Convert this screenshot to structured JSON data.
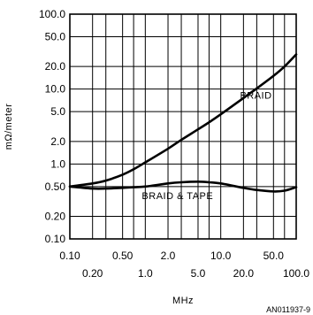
{
  "chart_data": {
    "type": "line",
    "xlabel": "MHz",
    "ylabel": "mΩ/meter",
    "x_scale": "log",
    "y_scale": "log",
    "xlim": [
      0.1,
      100
    ],
    "ylim": [
      0.1,
      100
    ],
    "grid": true,
    "y_ticks": [
      {
        "value": 100,
        "label": "100.0"
      },
      {
        "value": 50,
        "label": "50.0"
      },
      {
        "value": 20,
        "label": "20.0"
      },
      {
        "value": 10,
        "label": "10.0"
      },
      {
        "value": 5,
        "label": "5.0"
      },
      {
        "value": 2,
        "label": "2.0"
      },
      {
        "value": 1,
        "label": "1.0"
      },
      {
        "value": 0.5,
        "label": "0.50"
      },
      {
        "value": 0.2,
        "label": "0.20"
      },
      {
        "value": 0.1,
        "label": "0.10"
      }
    ],
    "x_ticks_top_row": [
      {
        "value": 0.1,
        "label": "0.10"
      },
      {
        "value": 0.5,
        "label": "0.50"
      },
      {
        "value": 2,
        "label": "2.0"
      },
      {
        "value": 10,
        "label": "10.0"
      },
      {
        "value": 50,
        "label": "50.0"
      }
    ],
    "x_ticks_bottom_row": [
      {
        "value": 0.2,
        "label": "0.20"
      },
      {
        "value": 1,
        "label": "1.0"
      },
      {
        "value": 5,
        "label": "5.0"
      },
      {
        "value": 20,
        "label": "20.0"
      },
      {
        "value": 100,
        "label": "100.0"
      }
    ],
    "x_gridlines": [
      0.2,
      0.3,
      0.5,
      0.7,
      1,
      2,
      3,
      5,
      7,
      10,
      20,
      30,
      50,
      70
    ],
    "series": [
      {
        "name": "BRAID",
        "x": [
          0.1,
          0.2,
          0.3,
          0.5,
          0.7,
          1,
          2,
          3,
          5,
          7,
          10,
          20,
          30,
          50,
          70,
          100
        ],
        "y": [
          0.5,
          0.55,
          0.6,
          0.72,
          0.85,
          1.05,
          1.6,
          2.1,
          2.9,
          3.6,
          4.6,
          7.6,
          10.2,
          15,
          20,
          29
        ]
      },
      {
        "name": "BRAID & TAPE",
        "x": [
          0.1,
          0.2,
          0.3,
          0.5,
          0.7,
          1,
          2,
          3,
          5,
          7,
          10,
          20,
          30,
          50,
          70,
          100
        ],
        "y": [
          0.5,
          0.47,
          0.47,
          0.48,
          0.49,
          0.5,
          0.55,
          0.57,
          0.58,
          0.57,
          0.55,
          0.48,
          0.45,
          0.43,
          0.44,
          0.49
        ]
      }
    ],
    "annotation": "AN011937-9"
  }
}
